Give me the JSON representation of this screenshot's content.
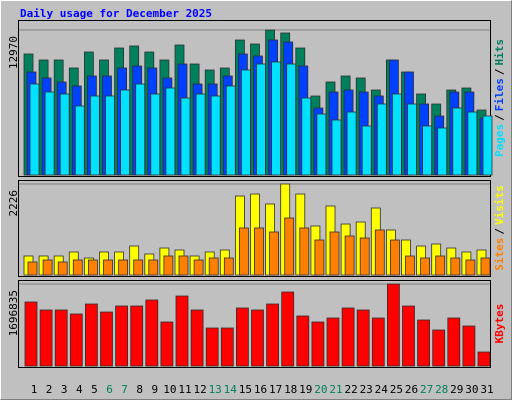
{
  "chart_data": [
    {
      "type": "bar",
      "title": "Daily usage for December 2025",
      "ylim": [
        0,
        12970
      ],
      "yticks": [
        12970
      ],
      "grid": true,
      "legend_separator": "/",
      "series": [
        {
          "name": "Hits",
          "color": "#00805C",
          "values": [
            10824,
            10287,
            10287,
            9571,
            11002,
            10287,
            11360,
            11539,
            11002,
            10287,
            11628,
            9929,
            9392,
            9571,
            12075,
            11718,
            12970,
            12702,
            11360,
            7066,
            8319,
            8855,
            8677,
            7603,
            10287,
            9213,
            7245,
            6351,
            7603,
            7782,
            5814
          ]
        },
        {
          "name": "Files",
          "color": "#0040FF",
          "values": [
            9213,
            8677,
            8319,
            7961,
            8856,
            8856,
            9571,
            9750,
            9571,
            8677,
            9929,
            8140,
            8140,
            8856,
            10824,
            10645,
            12076,
            11897,
            9750,
            5993,
            7424,
            7603,
            7424,
            7067,
            10287,
            9213,
            6351,
            5278,
            7424,
            7424,
            5099
          ]
        },
        {
          "name": "Pages",
          "color": "#00E0FF",
          "values": [
            8140,
            7424,
            7245,
            6172,
            7067,
            7067,
            7603,
            8140,
            7245,
            7782,
            6888,
            7245,
            7067,
            7961,
            9392,
            9929,
            10108,
            9929,
            6888,
            5456,
            4920,
            5635,
            4383,
            6351,
            7245,
            6351,
            4383,
            4204,
            5993,
            5635,
            5278
          ]
        }
      ]
    },
    {
      "type": "bar",
      "ylim": [
        0,
        2226
      ],
      "yticks": [
        2226
      ],
      "grid": true,
      "legend_separator": "/",
      "series": [
        {
          "name": "Visits",
          "color": "#FFFF00",
          "values": [
            465,
            465,
            465,
            563,
            416,
            563,
            563,
            709,
            514,
            660,
            612,
            465,
            563,
            612,
            1932,
            1981,
            1737,
            2226,
            1981,
            1199,
            1688,
            1247,
            1296,
            1639,
            1101,
            856,
            709,
            758,
            660,
            563,
            612
          ]
        },
        {
          "name": "Sites",
          "color": "#FF8000",
          "values": [
            318,
            367,
            318,
            367,
            367,
            367,
            367,
            367,
            367,
            465,
            465,
            367,
            416,
            416,
            1150,
            1150,
            1052,
            1394,
            1150,
            856,
            1052,
            954,
            905,
            1101,
            856,
            465,
            416,
            465,
            416,
            367,
            416
          ]
        }
      ]
    },
    {
      "type": "bar",
      "ylim": [
        0,
        1696835
      ],
      "yticks": [
        1696835
      ],
      "grid": true,
      "categories": [
        "1",
        "2",
        "3",
        "4",
        "5",
        "6",
        "7",
        "8",
        "9",
        "10",
        "11",
        "12",
        "13",
        "14",
        "15",
        "16",
        "17",
        "18",
        "19",
        "20",
        "21",
        "22",
        "23",
        "24",
        "25",
        "26",
        "27",
        "28",
        "29",
        "30",
        "31"
      ],
      "category_color": "#000000",
      "highlight_color": "#00805C",
      "highlight_categories": [
        5,
        6,
        12,
        13,
        19,
        20,
        26,
        27
      ],
      "series": [
        {
          "name": "KBytes",
          "color": "#FF0000",
          "values": [
            1324352,
            1158808,
            1158808,
            1076036,
            1282966,
            1117422,
            1241580,
            1241580,
            1365738,
            910492,
            1448510,
            1158808,
            786334,
            786334,
            1200194,
            1158808,
            1282966,
            1531282,
            1034650,
            910492,
            993264,
            1200194,
            1158808,
            993264,
            1696835,
            1241580,
            951878,
            744948,
            993264,
            827720,
            289702
          ]
        }
      ]
    }
  ]
}
